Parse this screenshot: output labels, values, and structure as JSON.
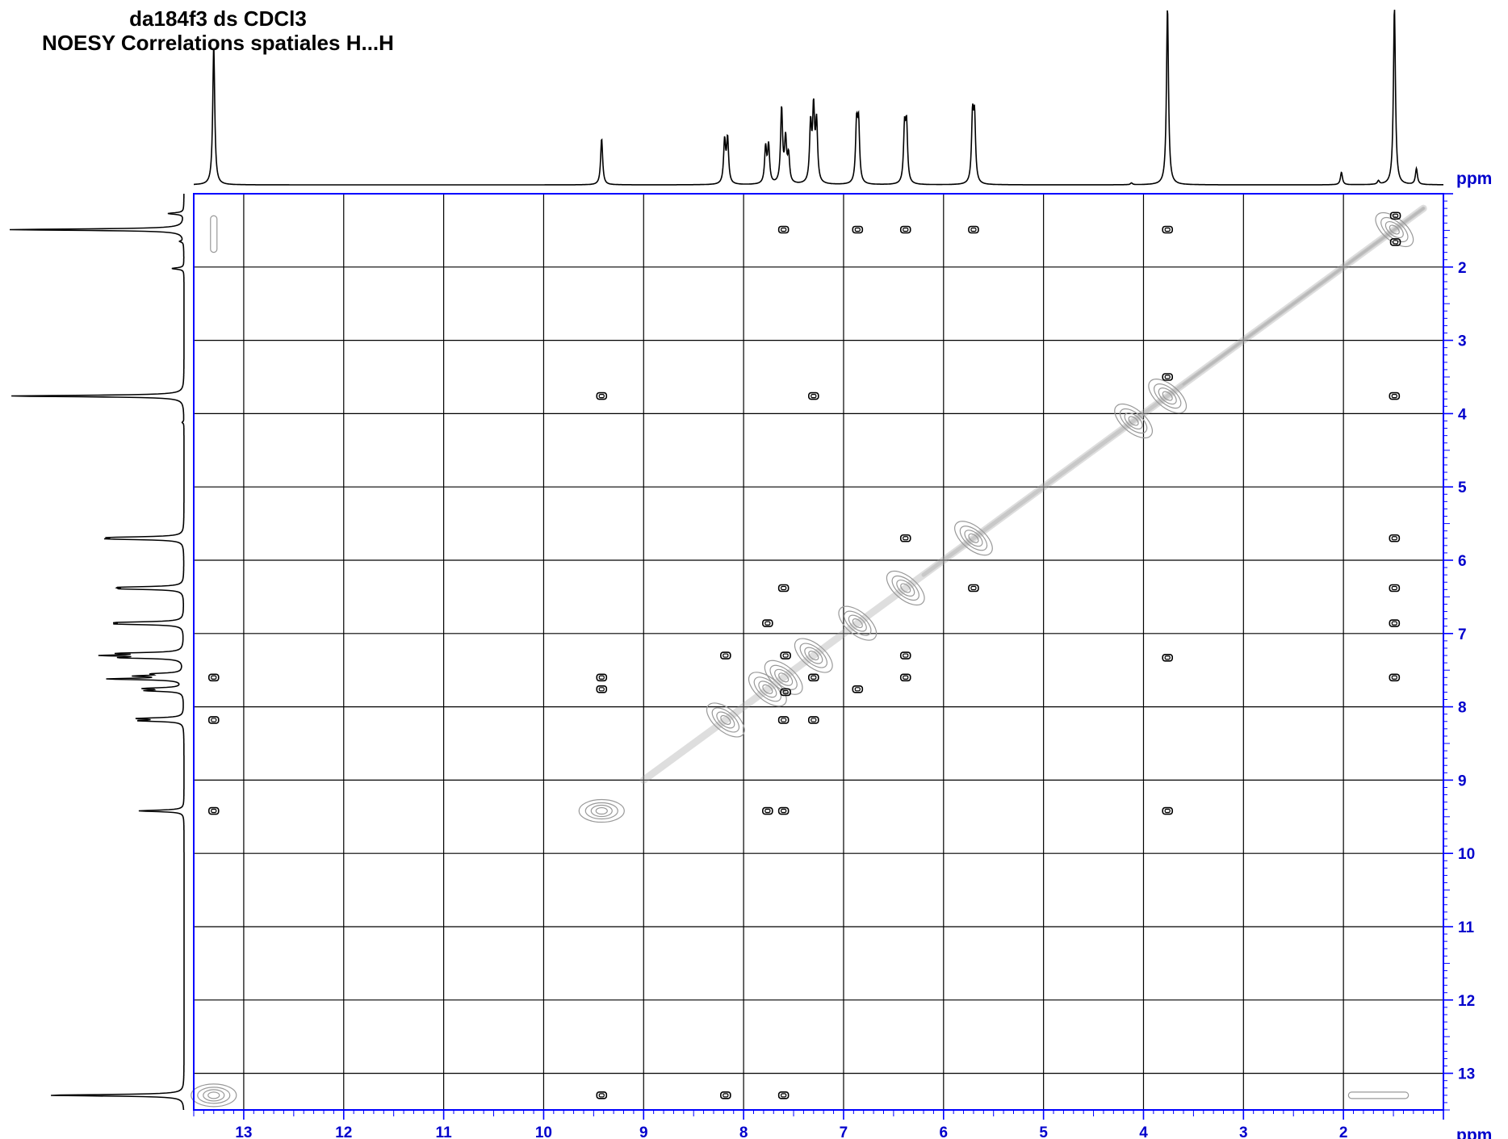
{
  "chart_data": {
    "type": "heatmap",
    "title": "da184f3 ds CDCl3",
    "subtitle": "NOESY Correlations spatiales H...H",
    "xlabel": "ppm",
    "ylabel": "ppm",
    "xlim": [
      13.5,
      1.0
    ],
    "ylim": [
      1.0,
      13.5
    ],
    "x_reversed": true,
    "grid": true,
    "x_ticks": [
      13,
      12,
      11,
      10,
      9,
      8,
      7,
      6,
      5,
      4,
      3,
      2
    ],
    "y_ticks": [
      2,
      3,
      4,
      5,
      6,
      7,
      8,
      9,
      10,
      11,
      12,
      13
    ],
    "projection_peaks_ppm": [
      {
        "ppm": 13.3,
        "height": 0.78
      },
      {
        "ppm": 9.42,
        "height": 0.26
      },
      {
        "ppm": 8.19,
        "height": 0.24
      },
      {
        "ppm": 8.16,
        "height": 0.25
      },
      {
        "ppm": 7.78,
        "height": 0.2
      },
      {
        "ppm": 7.75,
        "height": 0.21
      },
      {
        "ppm": 7.62,
        "height": 0.42
      },
      {
        "ppm": 7.58,
        "height": 0.24
      },
      {
        "ppm": 7.55,
        "height": 0.15
      },
      {
        "ppm": 7.33,
        "height": 0.32
      },
      {
        "ppm": 7.3,
        "height": 0.4
      },
      {
        "ppm": 7.27,
        "height": 0.33
      },
      {
        "ppm": 6.87,
        "height": 0.32
      },
      {
        "ppm": 6.85,
        "height": 0.32
      },
      {
        "ppm": 6.39,
        "height": 0.3
      },
      {
        "ppm": 6.37,
        "height": 0.31
      },
      {
        "ppm": 5.71,
        "height": 0.36
      },
      {
        "ppm": 5.69,
        "height": 0.35
      },
      {
        "ppm": 4.12,
        "height": 0.01
      },
      {
        "ppm": 3.76,
        "height": 1.0
      },
      {
        "ppm": 2.02,
        "height": 0.07
      },
      {
        "ppm": 1.65,
        "height": 0.02
      },
      {
        "ppm": 1.49,
        "height": 1.0
      },
      {
        "ppm": 1.27,
        "height": 0.09
      }
    ],
    "diagonal_peaks": [
      {
        "x": 13.3,
        "y": 13.3
      },
      {
        "x": 9.42,
        "y": 9.42
      },
      {
        "x": 8.18,
        "y": 8.18
      },
      {
        "x": 7.76,
        "y": 7.76
      },
      {
        "x": 7.6,
        "y": 7.6
      },
      {
        "x": 7.3,
        "y": 7.3
      },
      {
        "x": 6.86,
        "y": 6.86
      },
      {
        "x": 6.38,
        "y": 6.38
      },
      {
        "x": 5.7,
        "y": 5.7
      },
      {
        "x": 4.1,
        "y": 4.1
      },
      {
        "x": 3.76,
        "y": 3.76
      },
      {
        "x": 1.49,
        "y": 1.49
      }
    ],
    "cross_peaks": [
      {
        "x": 7.6,
        "y": 1.49
      },
      {
        "x": 6.86,
        "y": 1.49
      },
      {
        "x": 6.38,
        "y": 1.49
      },
      {
        "x": 5.7,
        "y": 1.49
      },
      {
        "x": 3.76,
        "y": 1.49
      },
      {
        "x": 1.48,
        "y": 1.3
      },
      {
        "x": 1.48,
        "y": 1.66
      },
      {
        "x": 9.42,
        "y": 3.76
      },
      {
        "x": 7.3,
        "y": 3.76
      },
      {
        "x": 3.76,
        "y": 3.5
      },
      {
        "x": 1.49,
        "y": 3.76
      },
      {
        "x": 6.38,
        "y": 5.7
      },
      {
        "x": 1.49,
        "y": 5.7
      },
      {
        "x": 7.6,
        "y": 6.38
      },
      {
        "x": 5.7,
        "y": 6.38
      },
      {
        "x": 1.49,
        "y": 6.38
      },
      {
        "x": 7.76,
        "y": 6.86
      },
      {
        "x": 1.49,
        "y": 6.86
      },
      {
        "x": 8.18,
        "y": 7.3
      },
      {
        "x": 7.58,
        "y": 7.3
      },
      {
        "x": 6.38,
        "y": 7.3
      },
      {
        "x": 3.76,
        "y": 7.33
      },
      {
        "x": 13.3,
        "y": 7.6
      },
      {
        "x": 9.42,
        "y": 7.6
      },
      {
        "x": 7.3,
        "y": 7.6
      },
      {
        "x": 6.38,
        "y": 7.6
      },
      {
        "x": 1.49,
        "y": 7.6
      },
      {
        "x": 9.42,
        "y": 7.76
      },
      {
        "x": 6.86,
        "y": 7.76
      },
      {
        "x": 7.58,
        "y": 7.8
      },
      {
        "x": 13.3,
        "y": 8.18
      },
      {
        "x": 7.3,
        "y": 8.18
      },
      {
        "x": 7.6,
        "y": 8.18
      },
      {
        "x": 13.3,
        "y": 9.42
      },
      {
        "x": 7.76,
        "y": 9.42
      },
      {
        "x": 7.6,
        "y": 9.42
      },
      {
        "x": 3.76,
        "y": 9.42
      },
      {
        "x": 9.42,
        "y": 13.3
      },
      {
        "x": 8.18,
        "y": 13.3
      },
      {
        "x": 7.6,
        "y": 13.3
      }
    ],
    "t1_noise_ridges": [
      {
        "x": 13.3,
        "y_range": [
          1.3,
          1.8
        ]
      },
      {
        "x_range": [
          1.35,
          1.95
        ],
        "y": 13.3
      }
    ]
  }
}
